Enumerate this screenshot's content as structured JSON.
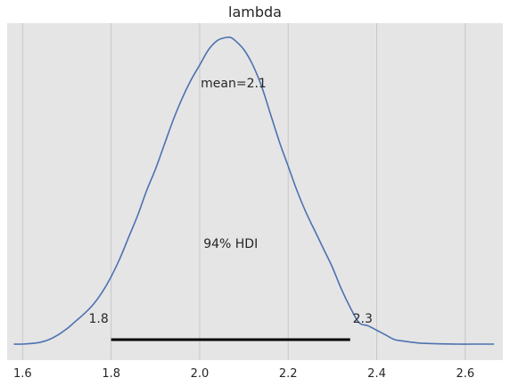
{
  "chart_data": {
    "type": "area",
    "title": "lambda",
    "xlabel": "",
    "ylabel": "",
    "xlim": [
      1.565,
      2.685
    ],
    "ylim": [
      0,
      1.05
    ],
    "grid": "x",
    "xticks": [
      1.6,
      1.8,
      2.0,
      2.2,
      2.4,
      2.6
    ],
    "xtick_labels": [
      "1.6",
      "1.8",
      "2.0",
      "2.2",
      "2.4",
      "2.6"
    ],
    "density": {
      "x": [
        1.58,
        1.6,
        1.62,
        1.64,
        1.66,
        1.68,
        1.7,
        1.72,
        1.74,
        1.76,
        1.78,
        1.8,
        1.82,
        1.84,
        1.86,
        1.88,
        1.9,
        1.92,
        1.94,
        1.96,
        1.98,
        2.0,
        2.02,
        2.04,
        2.06,
        2.07,
        2.08,
        2.1,
        2.12,
        2.14,
        2.16,
        2.18,
        2.2,
        2.22,
        2.24,
        2.26,
        2.28,
        2.3,
        2.32,
        2.34,
        2.36,
        2.38,
        2.4,
        2.42,
        2.44,
        2.46,
        2.48,
        2.5,
        2.54,
        2.58,
        2.62,
        2.665
      ],
      "y": [
        0.0,
        0.0,
        0.002,
        0.006,
        0.015,
        0.03,
        0.05,
        0.075,
        0.1,
        0.13,
        0.17,
        0.22,
        0.28,
        0.35,
        0.42,
        0.5,
        0.57,
        0.65,
        0.73,
        0.8,
        0.86,
        0.91,
        0.96,
        0.99,
        1.0,
        1.0,
        0.99,
        0.96,
        0.91,
        0.84,
        0.75,
        0.66,
        0.58,
        0.5,
        0.43,
        0.37,
        0.31,
        0.25,
        0.18,
        0.12,
        0.07,
        0.06,
        0.045,
        0.03,
        0.015,
        0.01,
        0.006,
        0.003,
        0.001,
        0.0,
        0.0,
        0.0
      ]
    },
    "hdi": {
      "low": 1.8,
      "high": 2.34,
      "low_label": "1.8",
      "high_label": "2.3",
      "label": "94% HDI"
    },
    "mean_label": "mean=2.1",
    "colors": {
      "background": "#e5e5e5",
      "line": "#4c72b0",
      "grid": "#c8c8c8",
      "hdi": "#000000"
    }
  }
}
